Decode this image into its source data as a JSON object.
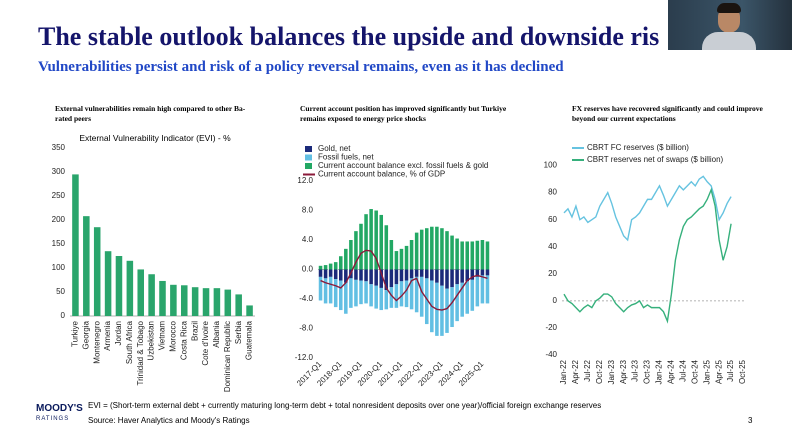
{
  "slide_title": "The stable outlook balances the upside and downside ris",
  "slide_subtitle": "Vulnerabilities persist and risk of a policy reversal remains, even as it has declined",
  "footnote": "EVI = (Short-term external debt + currently maturing long-term debt + total nonresident deposits over one year)/official foreign exchange reserves",
  "source": "Source: Haver Analytics and Moody's Ratings",
  "page_number": "3",
  "logo": {
    "name": "MOODY'S",
    "sub": "RATINGS"
  },
  "chart_data": [
    {
      "type": "bar",
      "heading": "External vulnerabilities remain high compared to other Ba-rated peers",
      "title": "External Vulnerability Indicator (EVI) - %",
      "categories": [
        "Turkiye",
        "Georgia",
        "Montenegro",
        "Armenia",
        "Jordan",
        "South Africa",
        "Trinidad & Tobago",
        "Uzbekistan",
        "Vietnam",
        "Morocco",
        "Costa Rica",
        "Brazil",
        "Cote d'Ivoire",
        "Albania",
        "Dominican Republic",
        "Serbia",
        "Guatemala"
      ],
      "values": [
        295,
        208,
        185,
        135,
        125,
        115,
        97,
        87,
        73,
        65,
        64,
        60,
        58,
        58,
        55,
        45,
        22
      ],
      "color": "#2aa56c",
      "ylim": [
        0,
        350
      ],
      "yticks": [
        0,
        50,
        100,
        150,
        200,
        250,
        300,
        350
      ],
      "grid": false
    },
    {
      "type": "stacked_bar",
      "heading": "Current account position has improved significantly but Turkiye remains exposed to energy price shocks",
      "categories": [
        "2017-Q1",
        null,
        null,
        null,
        "2018-Q1",
        null,
        null,
        null,
        "2019-Q1",
        null,
        null,
        null,
        "2020-Q1",
        null,
        null,
        null,
        "2021-Q1",
        null,
        null,
        null,
        "2022-Q1",
        null,
        null,
        null,
        "2023-Q1",
        null,
        null,
        null,
        "2024-Q1",
        null,
        null,
        null,
        "2025-Q1",
        null
      ],
      "series": [
        {
          "name": "Gold, net",
          "color": "#1b2a7a",
          "values": [
            -1.0,
            -1.2,
            -1.0,
            -1.3,
            -1.5,
            -1.8,
            -1.2,
            -1.4,
            -1.5,
            -1.6,
            -2.0,
            -2.2,
            -2.5,
            -2.8,
            -2.4,
            -2.0,
            -1.6,
            -1.5,
            -1.2,
            -1.0,
            -1.0,
            -1.2,
            -1.5,
            -1.8,
            -2.2,
            -2.6,
            -2.4,
            -2.0,
            -1.8,
            -1.6,
            -1.4,
            -1.0,
            -0.8,
            -0.8
          ]
        },
        {
          "name": "Fossil fuels, net",
          "color": "#62bfe3",
          "values": [
            -3.2,
            -3.4,
            -3.6,
            -3.8,
            -4.0,
            -4.2,
            -4.0,
            -3.6,
            -3.2,
            -3.0,
            -3.0,
            -3.1,
            -3.0,
            -2.6,
            -2.8,
            -3.2,
            -3.4,
            -3.6,
            -4.2,
            -4.8,
            -5.4,
            -6.2,
            -7.0,
            -7.2,
            -6.8,
            -6.0,
            -5.4,
            -5.0,
            -4.6,
            -4.4,
            -4.2,
            -4.0,
            -3.8,
            -3.8
          ]
        },
        {
          "name": "Current account balance excl. fossil fuels & gold",
          "color": "#22a864",
          "values": [
            0.5,
            0.6,
            0.8,
            1.0,
            1.8,
            2.8,
            4.0,
            5.2,
            6.2,
            7.5,
            8.2,
            8.0,
            7.4,
            6.0,
            4.0,
            2.5,
            2.8,
            3.2,
            4.0,
            5.0,
            5.4,
            5.6,
            5.8,
            5.8,
            5.6,
            5.2,
            4.6,
            4.2,
            3.8,
            3.8,
            3.8,
            3.9,
            4.0,
            3.8
          ]
        },
        {
          "name": "Current account balance, % of GDP",
          "color": "#8b1a3a",
          "kind": "line",
          "values": [
            -1.5,
            -1.8,
            -2.0,
            -2.2,
            -2.5,
            -1.8,
            -0.5,
            1.0,
            2.2,
            2.6,
            2.5,
            1.5,
            -0.5,
            -2.5,
            -3.5,
            -4.2,
            -3.6,
            -2.8,
            -1.5,
            -1.2,
            -3.0,
            -4.0,
            -5.0,
            -5.4,
            -5.5,
            -5.3,
            -4.5,
            -3.5,
            -2.5,
            -1.5,
            -1.0,
            -0.8,
            -1.0,
            -1.2
          ]
        }
      ],
      "ylim": [
        -12,
        12
      ],
      "yticks": [
        {
          "value": -12,
          "label": "-12.0"
        },
        {
          "value": -8,
          "label": "-8.0"
        },
        {
          "value": -4,
          "label": "-4.0"
        },
        {
          "value": 0,
          "label": "0.0"
        },
        {
          "value": 4,
          "label": "4.0"
        },
        {
          "value": 8,
          "label": "8.0"
        },
        {
          "value": 12,
          "label": "12.0"
        }
      ],
      "grid": false
    },
    {
      "type": "line",
      "heading": "FX reserves have recovered significantly and could improve beyond our current expectations",
      "categories": [
        "Jan-22",
        null,
        null,
        "Apr-22",
        null,
        null,
        "Jul-22",
        null,
        null,
        "Oct-22",
        null,
        null,
        "Jan-23",
        null,
        null,
        "Apr-23",
        null,
        null,
        "Jul-23",
        null,
        null,
        "Oct-23",
        null,
        null,
        "Jan-24",
        null,
        null,
        "Apr-24",
        null,
        null,
        "Jul-24",
        null,
        null,
        "Oct-24",
        null,
        null,
        "Jan-25",
        null,
        null,
        "Apr-25",
        null,
        null,
        "Jul-25",
        null,
        null,
        "Oct-25"
      ],
      "series": [
        {
          "name": "CBRT FC reserves ($ billion)",
          "color": "#66c3e0",
          "values": [
            65,
            68,
            62,
            70,
            60,
            62,
            58,
            60,
            62,
            70,
            75,
            80,
            72,
            62,
            55,
            48,
            45,
            60,
            62,
            65,
            70,
            75,
            75,
            80,
            85,
            78,
            70,
            75,
            80,
            85,
            82,
            85,
            88,
            85,
            90,
            92,
            88,
            85,
            75,
            60,
            65,
            72,
            77,
            null,
            null,
            null
          ]
        },
        {
          "name": "CBRT reserves net of swaps ($ billion)",
          "color": "#36b07c",
          "values": [
            5,
            0,
            -2,
            -5,
            -8,
            -5,
            -3,
            -5,
            0,
            2,
            5,
            5,
            3,
            -2,
            -5,
            -8,
            -5,
            -3,
            -2,
            0,
            -5,
            -3,
            -5,
            -5,
            -5,
            -8,
            -15,
            5,
            30,
            45,
            55,
            60,
            62,
            65,
            68,
            70,
            75,
            82,
            70,
            45,
            30,
            40,
            57,
            null,
            null,
            null
          ]
        }
      ],
      "ylim": [
        -40,
        110
      ],
      "yticks": [
        -40,
        -20,
        0,
        20,
        40,
        60,
        80,
        100
      ],
      "grid": false
    }
  ]
}
